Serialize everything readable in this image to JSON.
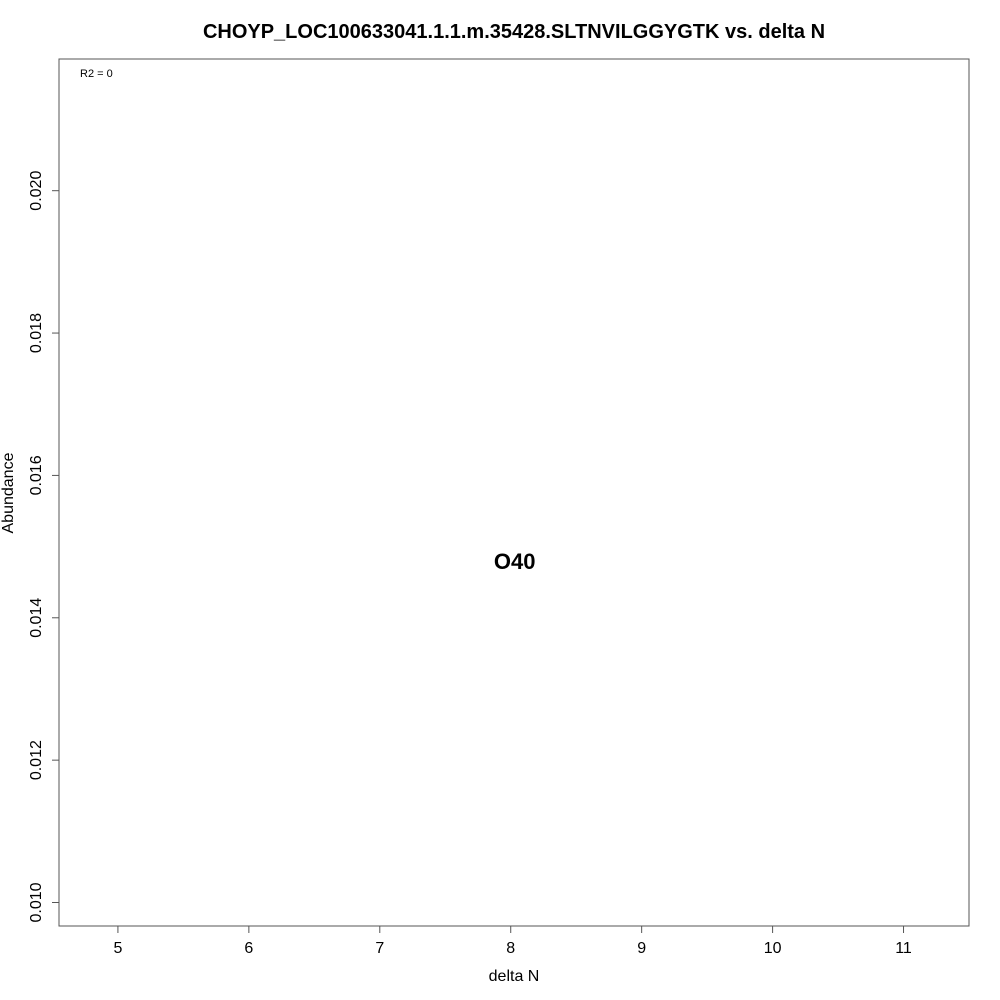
{
  "chart_data": {
    "type": "scatter",
    "title": "CHOYP_LOC100633041.1.1.m.35428.SLTNVILGGYGTK vs. delta N",
    "xlabel": "delta N",
    "ylabel": "Abundance",
    "xlim": [
      4.55,
      11.5
    ],
    "ylim": [
      0.00967,
      0.02185
    ],
    "x_ticks": [
      5,
      6,
      7,
      8,
      9,
      10,
      11
    ],
    "y_ticks": [
      0.01,
      0.012,
      0.014,
      0.016,
      0.018,
      0.02
    ],
    "x_tick_labels": [
      "5",
      "6",
      "7",
      "8",
      "9",
      "10",
      "11"
    ],
    "y_tick_labels": [
      "0.010",
      "0.012",
      "0.014",
      "0.016",
      "0.018",
      "0.020"
    ],
    "annotation": "R2 = 0",
    "points": [
      {
        "x": 8.03,
        "y": 0.0148,
        "label": "O40"
      }
    ],
    "grid": false,
    "legend": "none"
  }
}
